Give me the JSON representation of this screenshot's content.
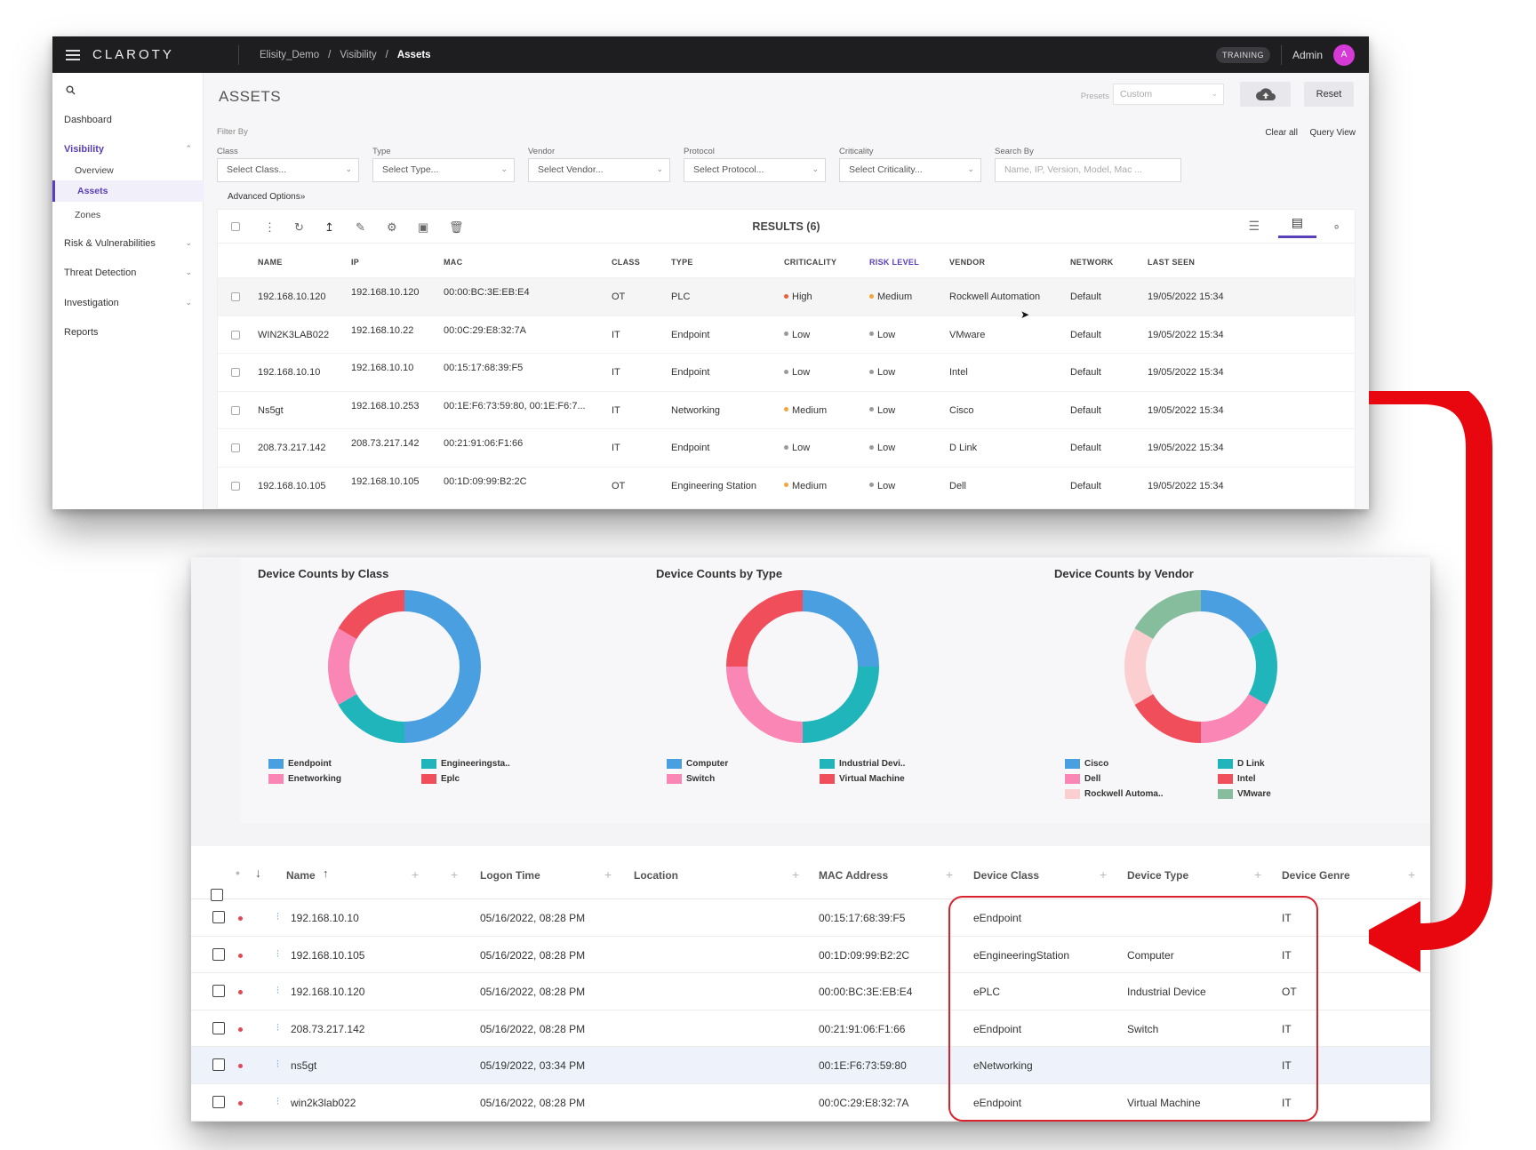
{
  "topbar": {
    "logo": "CLAROTY",
    "breadcrumb": [
      "Elisity_Demo",
      "/",
      "Visibility",
      "/",
      "Assets"
    ],
    "badge": "TRAINING",
    "user": "Admin",
    "avatar_initial": "A"
  },
  "sidebar": {
    "items": [
      "Dashboard",
      "Visibility",
      "Risk & Vulnerabilities",
      "Threat Detection",
      "Investigation",
      "Reports"
    ],
    "visibility_sub": [
      "Overview",
      "Assets",
      "Zones"
    ]
  },
  "assets": {
    "title": "ASSETS",
    "presets_label": "Presets",
    "presets_value": "Custom",
    "reset": "Reset",
    "filter_by": "Filter By",
    "clear_all": "Clear all",
    "query_view": "Query View",
    "filters": [
      {
        "label": "Class",
        "placeholder": "Select Class..."
      },
      {
        "label": "Type",
        "placeholder": "Select Type..."
      },
      {
        "label": "Vendor",
        "placeholder": "Select Vendor..."
      },
      {
        "label": "Protocol",
        "placeholder": "Select Protocol..."
      },
      {
        "label": "Criticality",
        "placeholder": "Select Criticality..."
      },
      {
        "label": "Search By",
        "placeholder": "Name, IP, Version, Model, Mac ..."
      }
    ],
    "advanced": "Advanced Options»",
    "results": "RESULTS (6)",
    "columns": [
      "NAME",
      "IP",
      "MAC",
      "CLASS",
      "TYPE",
      "CRITICALITY",
      "RISK LEVEL",
      "VENDOR",
      "NETWORK",
      "LAST SEEN"
    ],
    "rows": [
      [
        "192.168.10.120",
        "192.168.10.120",
        "00:00:BC:3E:EB:E4",
        "OT",
        "PLC",
        "High",
        "Medium",
        "Rockwell Automation",
        "Default",
        "19/05/2022 15:34"
      ],
      [
        "WIN2K3LAB022",
        "192.168.10.22",
        "00:0C:29:E8:32:7A",
        "IT",
        "Endpoint",
        "Low",
        "Low",
        "VMware",
        "Default",
        "19/05/2022 15:34"
      ],
      [
        "192.168.10.10",
        "192.168.10.10",
        "00:15:17:68:39:F5",
        "IT",
        "Endpoint",
        "Low",
        "Low",
        "Intel",
        "Default",
        "19/05/2022 15:34"
      ],
      [
        "Ns5gt",
        "192.168.10.253",
        "00:1E:F6:73:59:80, 00:1E:F6:7...",
        "IT",
        "Networking",
        "Medium",
        "Low",
        "Cisco",
        "Default",
        "19/05/2022 15:34"
      ],
      [
        "208.73.217.142",
        "208.73.217.142",
        "00:21:91:06:F1:66",
        "IT",
        "Endpoint",
        "Low",
        "Low",
        "D Link",
        "Default",
        "19/05/2022 15:34"
      ],
      [
        "192.168.10.105",
        "192.168.10.105",
        "00:1D:09:99:B2:2C",
        "OT",
        "Engineering Station",
        "Medium",
        "Low",
        "Dell",
        "Default",
        "19/05/2022 15:34"
      ]
    ],
    "level_colors": {
      "High": "#e8603c",
      "Medium": "#f0a63a",
      "Low": "#9a9a9a"
    }
  },
  "chart_data": [
    {
      "type": "pie",
      "title": "Device Counts by Class",
      "labels": [
        "Eendpoint",
        "Engineeringsta..",
        "Enetworking",
        "Eplc"
      ],
      "values": [
        3,
        1,
        1,
        1
      ],
      "colors": [
        "#4a9fe0",
        "#1fb5ba",
        "#f986b5",
        "#ef4e5a"
      ]
    },
    {
      "type": "pie",
      "title": "Device Counts by Type",
      "labels": [
        "Computer",
        "Industrial Devi..",
        "Switch",
        "Virtual Machine"
      ],
      "values": [
        1,
        1,
        1,
        1
      ],
      "colors": [
        "#4a9fe0",
        "#1fb5ba",
        "#f986b5",
        "#ef4e5a"
      ]
    },
    {
      "type": "pie",
      "title": "Device Counts by Vendor",
      "labels": [
        "Cisco",
        "D Link",
        "Dell",
        "Intel",
        "Rockwell Automa..",
        "VMware"
      ],
      "values": [
        1,
        1,
        1,
        1,
        1,
        1
      ],
      "colors": [
        "#4a9fe0",
        "#1fb5ba",
        "#f986b5",
        "#ef4e5a",
        "#fbcfd0",
        "#86bd9c"
      ]
    }
  ],
  "grid": {
    "columns": [
      "Name",
      "Logon Time",
      "Location",
      "MAC Address",
      "Device Class",
      "Device Type",
      "Device Genre"
    ],
    "rows": [
      [
        "192.168.10.10",
        "05/16/2022, 08:28 PM",
        "",
        "00:15:17:68:39:F5",
        "eEndpoint",
        "",
        "IT"
      ],
      [
        "192.168.10.105",
        "05/16/2022, 08:28 PM",
        "",
        "00:1D:09:99:B2:2C",
        "eEngineeringStation",
        "Computer",
        "IT"
      ],
      [
        "192.168.10.120",
        "05/16/2022, 08:28 PM",
        "",
        "00:00:BC:3E:EB:E4",
        "ePLC",
        "Industrial Device",
        "OT"
      ],
      [
        "208.73.217.142",
        "05/16/2022, 08:28 PM",
        "",
        "00:21:91:06:F1:66",
        "eEndpoint",
        "Switch",
        "IT"
      ],
      [
        "ns5gt",
        "05/19/2022, 03:34 PM",
        "",
        "00:1E:F6:73:59:80",
        "eNetworking",
        "",
        "IT"
      ],
      [
        "win2k3lab022",
        "05/16/2022, 08:28 PM",
        "",
        "00:0C:29:E8:32:7A",
        "eEndpoint",
        "Virtual Machine",
        "IT"
      ]
    ]
  },
  "accent_color": "#5a3fb8",
  "annotation_color": "#e8070e"
}
